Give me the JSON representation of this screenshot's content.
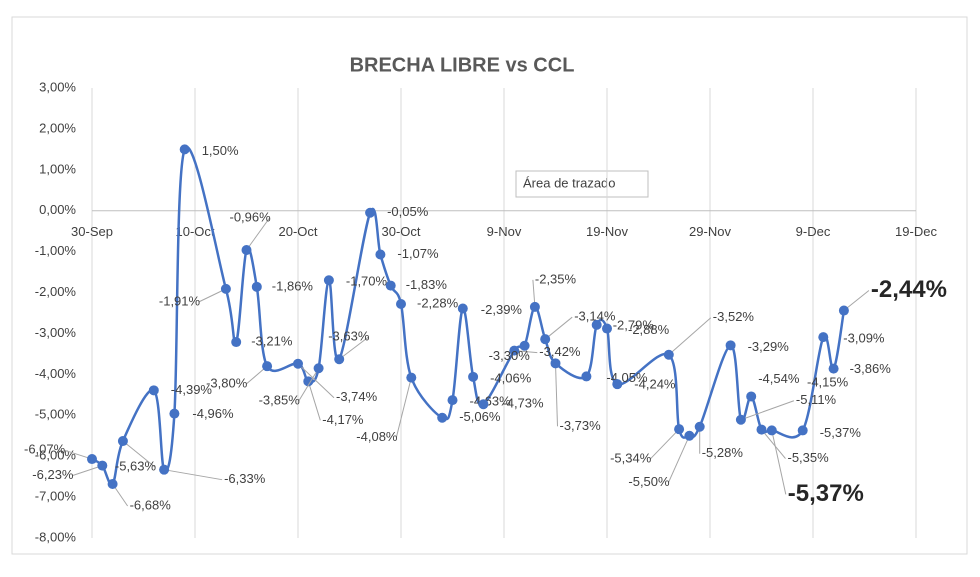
{
  "chart_data": {
    "type": "line",
    "title": "BRECHA LIBRE vs CCL",
    "x": [
      "30-Sep",
      "1-Oct",
      "2-Oct",
      "3-Oct",
      "6-Oct",
      "7-Oct",
      "8-Oct",
      "9-Oct",
      "13-Oct",
      "14-Oct",
      "15-Oct",
      "16-Oct",
      "17-Oct",
      "20-Oct",
      "21-Oct",
      "22-Oct",
      "23-Oct",
      "24-Oct",
      "27-Oct",
      "28-Oct",
      "29-Oct",
      "30-Oct",
      "31-Oct",
      "3-Nov",
      "4-Nov",
      "5-Nov",
      "6-Nov",
      "7-Nov",
      "10-Nov",
      "11-Nov",
      "12-Nov",
      "13-Nov",
      "14-Nov",
      "17-Nov",
      "18-Nov",
      "19-Nov",
      "20-Nov",
      "25-Nov",
      "26-Nov",
      "27-Nov",
      "28-Nov",
      "1-Dec",
      "2-Dec",
      "3-Dec",
      "4-Dec",
      "5-Dec",
      "8-Dec",
      "10-Dec",
      "11-Dec",
      "12-Dec"
    ],
    "series": [
      {
        "color": "#4472c4",
        "values": [
          -6.07,
          -6.23,
          -6.68,
          -5.63,
          -4.39,
          -6.33,
          -4.96,
          1.5,
          -1.91,
          -3.21,
          -0.96,
          -1.86,
          -3.8,
          -3.74,
          -4.17,
          -3.85,
          -1.7,
          -3.63,
          -0.05,
          -1.07,
          -1.83,
          -2.28,
          -4.08,
          -5.06,
          -4.63,
          -2.39,
          -4.06,
          -4.73,
          -3.42,
          -3.3,
          -2.35,
          -3.14,
          -3.73,
          -4.05,
          -2.79,
          -2.88,
          -4.24,
          -3.52,
          -5.34,
          -5.5,
          -5.28,
          -3.29,
          -5.11,
          -4.54,
          -5.35,
          -5.37,
          -5.37,
          -3.09,
          -3.86,
          -2.44
        ],
        "value_labels": [
          "-6,07%",
          "-6,23%",
          "-6,68%",
          "-5,63%",
          "-4,39%",
          "-6,33%",
          "-4,96%",
          "1,50%",
          "-1,91%",
          "-3,21%",
          "-0,96%",
          "-1,86%",
          "-3,80%",
          "-3,74%",
          "-4,17%",
          "-3,85%",
          "-1,70%",
          "-3,63%",
          "-0,05%",
          "-1,07%",
          "-1,83%",
          "-2,28%",
          "-4,08%",
          "-5,06%",
          "-4,63%",
          "-2,39%",
          "-4,06%",
          "-4,73%",
          "-3,42%",
          "-3,30%",
          "-2,35%",
          "-3,14%",
          "-3,73%",
          "-4,05%",
          "-2,79%",
          "-2,88%",
          "-4,24%",
          "-3,52%",
          "-5,34%",
          "-5,50%",
          "-5,28%",
          "-3,29%",
          "-5,11%",
          "-4,54%",
          "-5,35%",
          "-5,37%",
          "-5,37%",
          "-3,09%",
          "-3,86%",
          "-2,44%"
        ]
      }
    ],
    "emphasized_labels": [
      45,
      49
    ],
    "annotations": [
      "-4,15%"
    ],
    "tooltip": "Área de trazado",
    "xlim": [
      "30-Sep",
      "19-Dec"
    ],
    "xticks": [
      "30-Sep",
      "10-Oct",
      "20-Oct",
      "30-Oct",
      "9-Nov",
      "19-Nov",
      "29-Nov",
      "9-Dec",
      "19-Dec"
    ],
    "ylim": [
      -8,
      3
    ],
    "yticks": [
      {
        "value": 3,
        "label": "3,00%"
      },
      {
        "value": 2,
        "label": "2,00%"
      },
      {
        "value": 1,
        "label": "1,00%"
      },
      {
        "value": 0,
        "label": "0,00%"
      },
      {
        "value": -1,
        "label": "-1,00%"
      },
      {
        "value": -2,
        "label": "-2,00%"
      },
      {
        "value": -3,
        "label": "-3,00%"
      },
      {
        "value": -4,
        "label": "-4,00%"
      },
      {
        "value": -5,
        "label": "-5,00%"
      },
      {
        "value": -6,
        "label": "-6,00%"
      },
      {
        "value": -7,
        "label": "-7,00%"
      },
      {
        "value": -8,
        "label": "-8,00%"
      }
    ],
    "grid": "x"
  }
}
